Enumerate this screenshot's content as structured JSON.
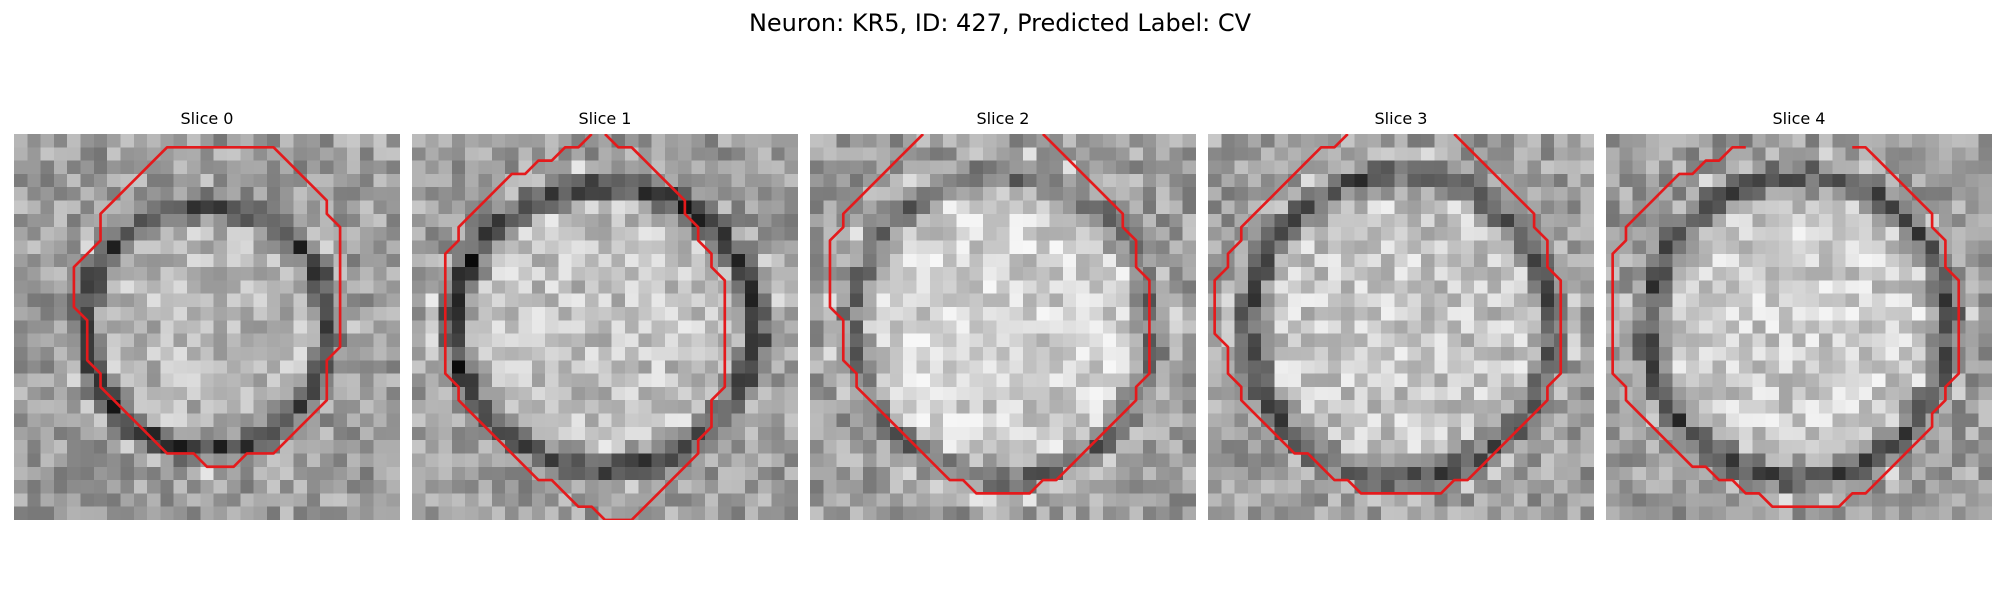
{
  "figure": {
    "title": "Neuron: KR5, ID: 427, Predicted Label: CV"
  },
  "contour_color": "#e41a1c",
  "panels": [
    {
      "title": "Slice 0",
      "ring_darkness": 0.8,
      "interior_brightness": 0.72,
      "contour": [
        [
          13.5,
          1
        ],
        [
          19.5,
          1
        ],
        [
          20.5,
          2
        ],
        [
          21.5,
          3
        ],
        [
          22.5,
          4
        ],
        [
          23.5,
          5
        ],
        [
          23.5,
          6
        ],
        [
          24.5,
          7
        ],
        [
          24.5,
          16
        ],
        [
          23.5,
          17
        ],
        [
          23.5,
          20
        ],
        [
          22.5,
          21
        ],
        [
          21.5,
          22
        ],
        [
          20.5,
          23
        ],
        [
          19.5,
          24
        ],
        [
          17.5,
          24
        ],
        [
          16.5,
          25
        ],
        [
          14.5,
          25
        ],
        [
          13.5,
          24
        ],
        [
          11.5,
          24
        ],
        [
          10.5,
          23
        ],
        [
          9.5,
          22
        ],
        [
          8.5,
          21
        ],
        [
          7.5,
          20
        ],
        [
          6.5,
          19
        ],
        [
          6.5,
          18
        ],
        [
          5.5,
          17
        ],
        [
          5.5,
          16
        ],
        [
          5.5,
          15
        ],
        [
          5.5,
          14
        ],
        [
          4.5,
          13
        ],
        [
          4.5,
          12
        ],
        [
          4.5,
          10
        ],
        [
          5.5,
          9
        ],
        [
          6.5,
          8
        ],
        [
          6.5,
          6
        ],
        [
          7.5,
          5
        ],
        [
          8.5,
          4
        ],
        [
          9.5,
          3
        ],
        [
          10.5,
          2
        ],
        [
          11.5,
          1
        ],
        [
          13.5,
          1
        ]
      ]
    },
    {
      "title": "Slice 1",
      "ring_darkness": 0.85,
      "interior_brightness": 0.76,
      "contour": [
        [
          13.5,
          0
        ],
        [
          12.5,
          1
        ],
        [
          11.5,
          1
        ],
        [
          10.5,
          2
        ],
        [
          9.5,
          2
        ],
        [
          8.5,
          3
        ],
        [
          7.5,
          3
        ],
        [
          6.5,
          4
        ],
        [
          5.5,
          5
        ],
        [
          4.5,
          6
        ],
        [
          3.5,
          7
        ],
        [
          3.5,
          8
        ],
        [
          2.5,
          9
        ],
        [
          2.5,
          10
        ],
        [
          2.5,
          11
        ],
        [
          2.5,
          12
        ],
        [
          2.5,
          13
        ],
        [
          2.5,
          14
        ],
        [
          2.5,
          15
        ],
        [
          2.5,
          16
        ],
        [
          2.5,
          17
        ],
        [
          2.5,
          18
        ],
        [
          3.5,
          19
        ],
        [
          3.5,
          20
        ],
        [
          4.5,
          21
        ],
        [
          5.5,
          22
        ],
        [
          6.5,
          23
        ],
        [
          7.5,
          24
        ],
        [
          8.5,
          25
        ],
        [
          9.5,
          26
        ],
        [
          10.5,
          26
        ],
        [
          11.5,
          27
        ],
        [
          12.5,
          28
        ],
        [
          13.5,
          28
        ],
        [
          14.5,
          29
        ],
        [
          16.5,
          29
        ],
        [
          17.5,
          28
        ],
        [
          18.5,
          27
        ],
        [
          19.5,
          26
        ],
        [
          20.5,
          25
        ],
        [
          21.5,
          24
        ],
        [
          21.5,
          23
        ],
        [
          22.5,
          22
        ],
        [
          22.5,
          21
        ],
        [
          22.5,
          20
        ],
        [
          23.5,
          19
        ],
        [
          23.5,
          18
        ],
        [
          23.5,
          17
        ],
        [
          23.5,
          16
        ],
        [
          23.5,
          15
        ],
        [
          23.5,
          14
        ],
        [
          23.5,
          13
        ],
        [
          23.5,
          12
        ],
        [
          23.5,
          11
        ],
        [
          22.5,
          10
        ],
        [
          22.5,
          9
        ],
        [
          21.5,
          8
        ],
        [
          21.5,
          7
        ],
        [
          20.5,
          6
        ],
        [
          20.5,
          5
        ],
        [
          19.5,
          4
        ],
        [
          18.5,
          3
        ],
        [
          17.5,
          2
        ],
        [
          16.5,
          1
        ],
        [
          15.5,
          1
        ],
        [
          14.5,
          0
        ]
      ]
    },
    {
      "title": "Slice 2",
      "ring_darkness": 0.55,
      "interior_brightness": 0.82,
      "contour": [
        [
          8.5,
          0
        ],
        [
          7.5,
          1
        ],
        [
          6.5,
          2
        ],
        [
          5.5,
          3
        ],
        [
          4.5,
          4
        ],
        [
          3.5,
          5
        ],
        [
          2.5,
          6
        ],
        [
          2.5,
          7
        ],
        [
          1.5,
          8
        ],
        [
          1.5,
          9
        ],
        [
          1.5,
          10
        ],
        [
          1.5,
          11
        ],
        [
          1.5,
          12
        ],
        [
          1.5,
          13
        ],
        [
          2.5,
          14
        ],
        [
          2.5,
          15
        ],
        [
          2.5,
          16
        ],
        [
          2.5,
          17
        ],
        [
          3.5,
          18
        ],
        [
          3.5,
          19
        ],
        [
          4.5,
          20
        ],
        [
          5.5,
          21
        ],
        [
          6.5,
          22
        ],
        [
          7.5,
          23
        ],
        [
          8.5,
          24
        ],
        [
          9.5,
          25
        ],
        [
          10.5,
          26
        ],
        [
          11.5,
          26
        ],
        [
          12.5,
          27
        ],
        [
          13.5,
          27
        ],
        [
          14.5,
          27
        ],
        [
          15.5,
          27
        ],
        [
          16.5,
          27
        ],
        [
          17.5,
          26
        ],
        [
          18.5,
          26
        ],
        [
          19.5,
          25
        ],
        [
          20.5,
          24
        ],
        [
          21.5,
          23
        ],
        [
          22.5,
          22
        ],
        [
          23.5,
          21
        ],
        [
          24.5,
          20
        ],
        [
          24.5,
          19
        ],
        [
          25.5,
          18
        ],
        [
          25.5,
          17
        ],
        [
          25.5,
          16
        ],
        [
          25.5,
          15
        ],
        [
          25.5,
          14
        ],
        [
          25.5,
          13
        ],
        [
          25.5,
          12
        ],
        [
          25.5,
          11
        ],
        [
          24.5,
          10
        ],
        [
          24.5,
          9
        ],
        [
          24.5,
          8
        ],
        [
          23.5,
          7
        ],
        [
          23.5,
          6
        ],
        [
          22.5,
          5
        ],
        [
          21.5,
          4
        ],
        [
          20.5,
          3
        ],
        [
          19.5,
          2
        ],
        [
          18.5,
          1
        ],
        [
          17.5,
          0
        ]
      ]
    },
    {
      "title": "Slice 3",
      "ring_darkness": 0.7,
      "interior_brightness": 0.78,
      "contour": [
        [
          10.5,
          0
        ],
        [
          9.5,
          1
        ],
        [
          8.5,
          1
        ],
        [
          7.5,
          2
        ],
        [
          6.5,
          3
        ],
        [
          5.5,
          4
        ],
        [
          4.5,
          5
        ],
        [
          3.5,
          6
        ],
        [
          2.5,
          7
        ],
        [
          2.5,
          8
        ],
        [
          1.5,
          9
        ],
        [
          1.5,
          10
        ],
        [
          0.5,
          11
        ],
        [
          0.5,
          12
        ],
        [
          0.5,
          13
        ],
        [
          0.5,
          14
        ],
        [
          0.5,
          15
        ],
        [
          1.5,
          16
        ],
        [
          1.5,
          17
        ],
        [
          1.5,
          18
        ],
        [
          2.5,
          19
        ],
        [
          2.5,
          20
        ],
        [
          3.5,
          21
        ],
        [
          4.5,
          22
        ],
        [
          5.5,
          23
        ],
        [
          6.5,
          24
        ],
        [
          7.5,
          24
        ],
        [
          8.5,
          25
        ],
        [
          9.5,
          26
        ],
        [
          10.5,
          26
        ],
        [
          11.5,
          27
        ],
        [
          13.5,
          27
        ],
        [
          14.5,
          27
        ],
        [
          15.5,
          27
        ],
        [
          16.5,
          27
        ],
        [
          17.5,
          27
        ],
        [
          18.5,
          26
        ],
        [
          19.5,
          26
        ],
        [
          20.5,
          25
        ],
        [
          21.5,
          24
        ],
        [
          22.5,
          23
        ],
        [
          23.5,
          22
        ],
        [
          24.5,
          21
        ],
        [
          25.5,
          20
        ],
        [
          25.5,
          19
        ],
        [
          26.5,
          18
        ],
        [
          26.5,
          17
        ],
        [
          26.5,
          16
        ],
        [
          26.5,
          15
        ],
        [
          26.5,
          14
        ],
        [
          26.5,
          13
        ],
        [
          26.5,
          12
        ],
        [
          26.5,
          11
        ],
        [
          25.5,
          10
        ],
        [
          25.5,
          9
        ],
        [
          25.5,
          8
        ],
        [
          24.5,
          7
        ],
        [
          24.5,
          6
        ],
        [
          23.5,
          5
        ],
        [
          22.5,
          4
        ],
        [
          21.5,
          3
        ],
        [
          20.5,
          2
        ],
        [
          19.5,
          1
        ],
        [
          18.5,
          0
        ]
      ]
    },
    {
      "title": "Slice 4",
      "ring_darkness": 0.72,
      "interior_brightness": 0.8,
      "contour": [
        [
          10.5,
          1
        ],
        [
          9.5,
          1
        ],
        [
          8.5,
          2
        ],
        [
          7.5,
          2
        ],
        [
          6.5,
          3
        ],
        [
          5.5,
          3
        ],
        [
          4.5,
          4
        ],
        [
          3.5,
          5
        ],
        [
          2.5,
          6
        ],
        [
          1.5,
          7
        ],
        [
          1.5,
          8
        ],
        [
          0.5,
          9
        ],
        [
          0.5,
          10
        ],
        [
          0.5,
          11
        ],
        [
          0.5,
          12
        ],
        [
          0.5,
          13
        ],
        [
          0.5,
          14
        ],
        [
          0.5,
          15
        ],
        [
          0.5,
          16
        ],
        [
          0.5,
          17
        ],
        [
          0.5,
          18
        ],
        [
          1.5,
          19
        ],
        [
          1.5,
          20
        ],
        [
          2.5,
          21
        ],
        [
          3.5,
          22
        ],
        [
          4.5,
          23
        ],
        [
          5.5,
          24
        ],
        [
          6.5,
          25
        ],
        [
          7.5,
          25
        ],
        [
          8.5,
          26
        ],
        [
          9.5,
          26
        ],
        [
          10.5,
          27
        ],
        [
          11.5,
          27
        ],
        [
          12.5,
          28
        ],
        [
          17.5,
          28
        ],
        [
          18.5,
          27
        ],
        [
          19.5,
          27
        ],
        [
          20.5,
          26
        ],
        [
          21.5,
          25
        ],
        [
          22.5,
          24
        ],
        [
          23.5,
          23
        ],
        [
          24.5,
          22
        ],
        [
          24.5,
          21
        ],
        [
          25.5,
          20
        ],
        [
          25.5,
          19
        ],
        [
          26.5,
          18
        ],
        [
          26.5,
          17
        ],
        [
          26.5,
          16
        ],
        [
          26.5,
          15
        ],
        [
          26.5,
          14
        ],
        [
          26.5,
          13
        ],
        [
          26.5,
          12
        ],
        [
          26.5,
          11
        ],
        [
          25.5,
          10
        ],
        [
          25.5,
          9
        ],
        [
          25.5,
          8
        ],
        [
          24.5,
          7
        ],
        [
          24.5,
          6
        ],
        [
          23.5,
          5
        ],
        [
          22.5,
          4
        ],
        [
          21.5,
          3
        ],
        [
          20.5,
          2
        ],
        [
          19.5,
          1
        ],
        [
          18.5,
          1
        ]
      ]
    }
  ]
}
